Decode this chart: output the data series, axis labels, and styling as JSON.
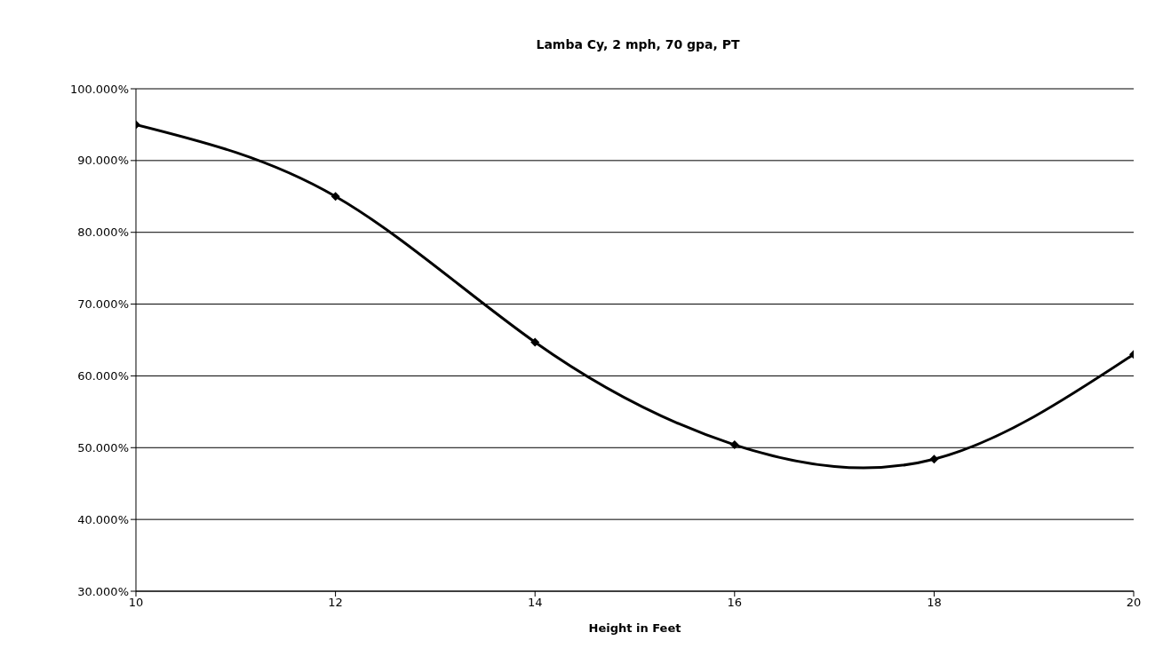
{
  "chart_data": {
    "type": "line",
    "title": "Lamba Cy, 2 mph, 70 gpa, PT",
    "xlabel": "Height in Feet",
    "x": [
      10,
      12,
      14,
      16,
      18,
      20
    ],
    "series": [
      {
        "color": "#000000",
        "values": [
          95,
          85,
          64.7,
          50.4,
          48.4,
          63
        ]
      }
    ],
    "xlim": [
      10,
      20
    ],
    "xticks": [
      10,
      12,
      14,
      16,
      18,
      20
    ],
    "ylim": [
      30,
      100
    ],
    "yticks": [
      {
        "value": 30,
        "label": "30.000%"
      },
      {
        "value": 40,
        "label": "40.000%"
      },
      {
        "value": 50,
        "label": "50.000%"
      },
      {
        "value": 60,
        "label": "60.000%"
      },
      {
        "value": 70,
        "label": "70.000%"
      },
      {
        "value": 80,
        "label": "80.000%"
      },
      {
        "value": 90,
        "label": "90.000%"
      },
      {
        "value": 100,
        "label": "100.000%"
      }
    ],
    "grid": "y",
    "legend": false,
    "marker": "diamond",
    "line_style": "solid"
  }
}
